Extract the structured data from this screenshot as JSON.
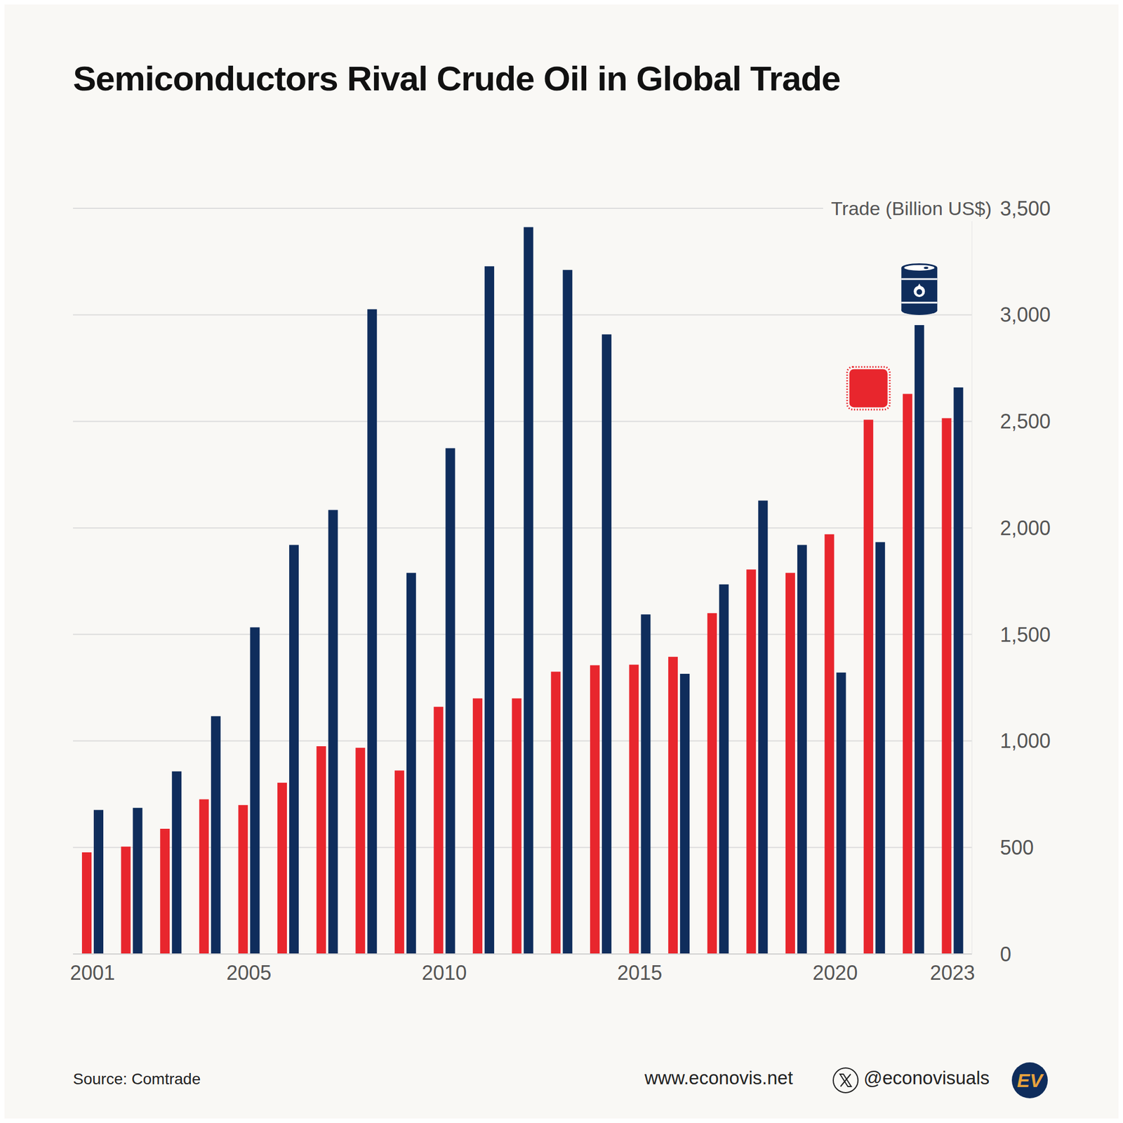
{
  "chart_data": {
    "type": "bar",
    "title": "Semiconductors Rival Crude Oil in Global Trade",
    "y_label": "Trade (Billion US$)",
    "categories": [
      "2001",
      null,
      null,
      null,
      "2005",
      null,
      null,
      null,
      null,
      "2010",
      null,
      null,
      null,
      null,
      "2015",
      null,
      null,
      null,
      null,
      "2020",
      null,
      null,
      "2023"
    ],
    "series": [
      {
        "color": "#e8262d",
        "values": [
          477,
          504,
          588,
          726,
          699,
          804,
          975,
          968,
          861,
          1160,
          1200,
          1200,
          1325,
          1355,
          1358,
          1395,
          1600,
          1805,
          1789,
          1970,
          2508,
          2629,
          2515
        ]
      },
      {
        "color": "#0f2d5c",
        "values": [
          676,
          686,
          857,
          1116,
          1533,
          1920,
          2084,
          3026,
          1789,
          2374,
          3228,
          3412,
          3211,
          2908,
          1594,
          1315,
          1735,
          2128,
          1920,
          1321,
          1933,
          2952,
          2659
        ]
      }
    ],
    "ylim": [
      0,
      3500
    ],
    "yticks": [
      0,
      500,
      {
        "value": 1000,
        "label": "1,000"
      },
      {
        "value": 1500,
        "label": "1,500"
      },
      {
        "value": 2000,
        "label": "2,000"
      },
      {
        "value": 2500,
        "label": "2,500"
      },
      {
        "value": 3000,
        "label": "3,000"
      },
      {
        "value": 3500,
        "label": "3,500"
      }
    ],
    "grid": true,
    "source": "Source: Comtrade",
    "website": "www.econovis.net",
    "social": "@econovisuals",
    "logo": "EV"
  }
}
